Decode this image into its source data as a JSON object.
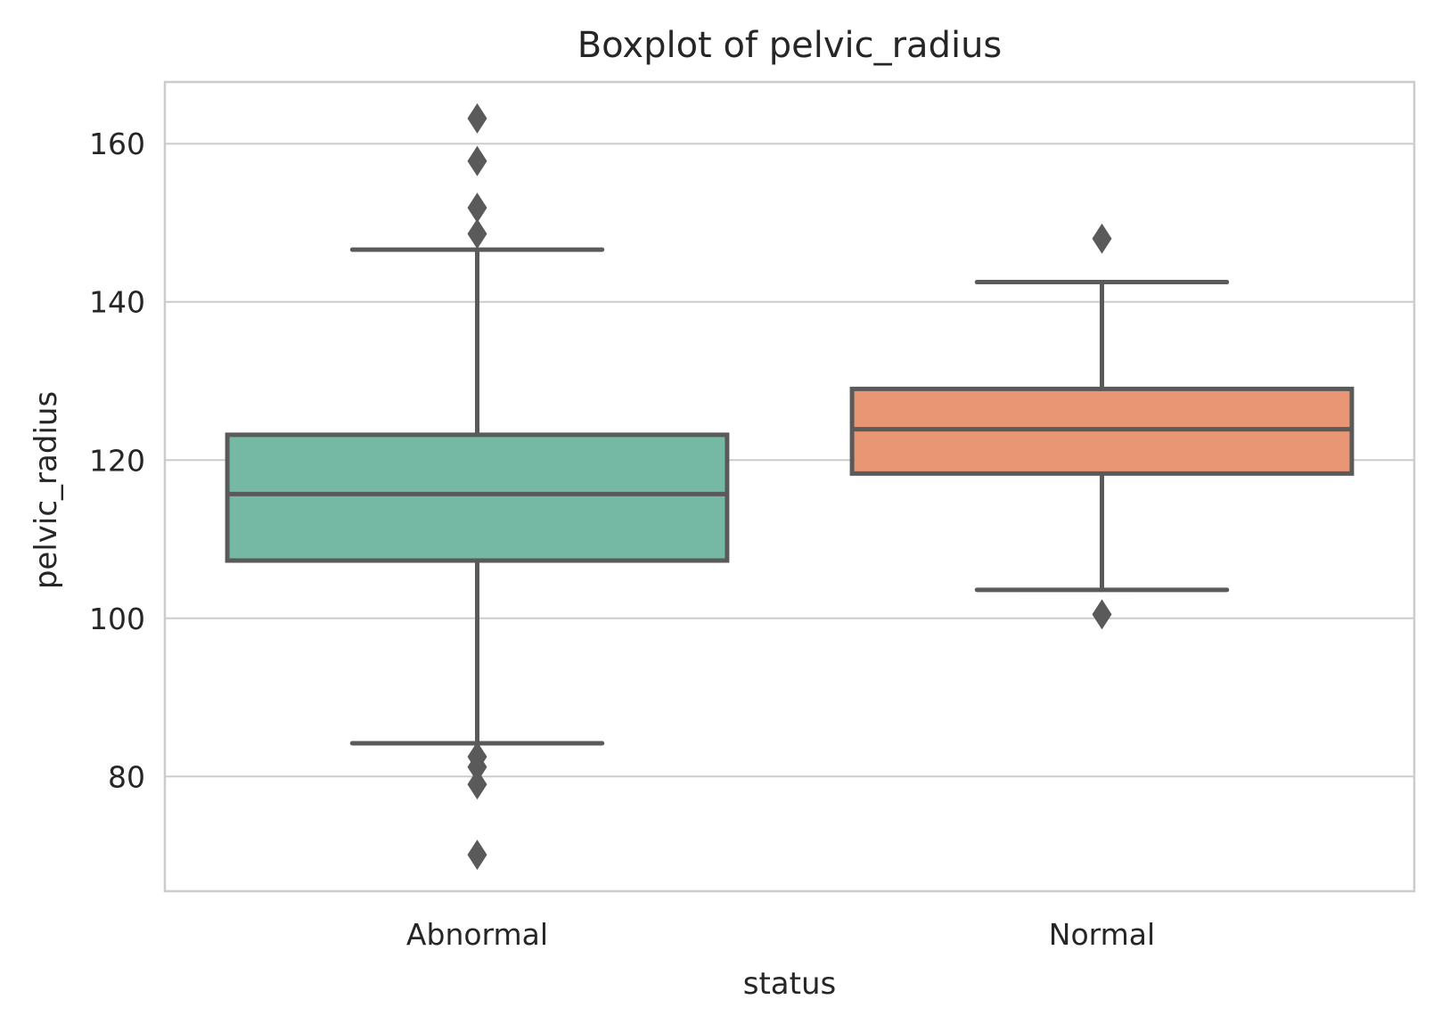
{
  "chart_data": {
    "type": "box",
    "title": "Boxplot of pelvic_radius",
    "xlabel": "status",
    "ylabel": "pelvic_radius",
    "categories": [
      "Abnormal",
      "Normal"
    ],
    "ylim": [
      65.5,
      167.8
    ],
    "yticks": [
      80,
      100,
      120,
      140,
      160
    ],
    "grid": true,
    "colors": [
      "#75b8a3",
      "#e99675"
    ],
    "line_color": "#5a5a5a",
    "series": [
      {
        "category": "Abnormal",
        "whisker_low": 84.2,
        "q1": 107.3,
        "median": 115.7,
        "q3": 123.2,
        "whisker_high": 146.6,
        "fliers": [
          163.2,
          157.8,
          151.9,
          148.6,
          82.5,
          81.2,
          79.0,
          70.1
        ]
      },
      {
        "category": "Normal",
        "whisker_low": 103.6,
        "q1": 118.3,
        "median": 123.9,
        "q3": 129.0,
        "whisker_high": 142.5,
        "fliers": [
          148.0,
          100.5
        ]
      }
    ]
  }
}
